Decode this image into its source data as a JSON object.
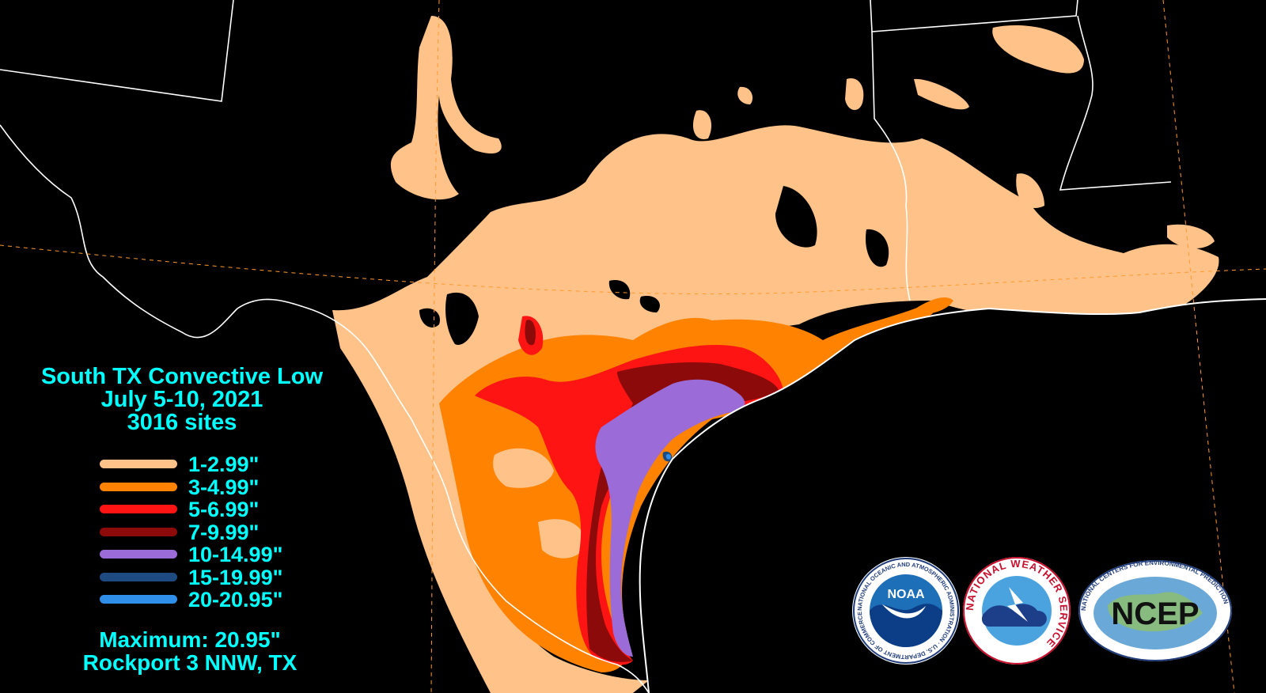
{
  "title": {
    "line1": "South TX Convective Low",
    "line2": "July 5-10, 2021",
    "line3": "3016 sites"
  },
  "legend": [
    {
      "label": "1-2.99\"",
      "color": "#ffc38a"
    },
    {
      "label": "3-4.99\"",
      "color": "#ff8200"
    },
    {
      "label": "5-6.99\"",
      "color": "#ff1414"
    },
    {
      "label": "7-9.99\"",
      "color": "#8c0a0a"
    },
    {
      "label": "10-14.99\"",
      "color": "#9b6cd8"
    },
    {
      "label": "15-19.99\"",
      "color": "#1e4a82"
    },
    {
      "label": "20-20.95\"",
      "color": "#2f8ee8"
    }
  ],
  "maximum": {
    "line1": "Maximum: 20.95\"",
    "line2": "Rockport 3 NNW, TX"
  },
  "logos": {
    "noaa": {
      "name": "NOAA",
      "ring_text": "NATIONAL OCEANIC AND ATMOSPHERIC ADMINISTRATION · U.S. DEPARTMENT OF COMMERCE"
    },
    "nws": {
      "ring_text": "NATIONAL WEATHER SERVICE"
    },
    "ncep": {
      "name": "NCEP",
      "ring_text": "NATIONAL CENTERS FOR ENVIRONMENTAL PREDICTION"
    }
  },
  "colors": {
    "background": "#000000",
    "text": "#00ffff",
    "borders": "#ffffff",
    "grid": "#ff9a2e"
  }
}
